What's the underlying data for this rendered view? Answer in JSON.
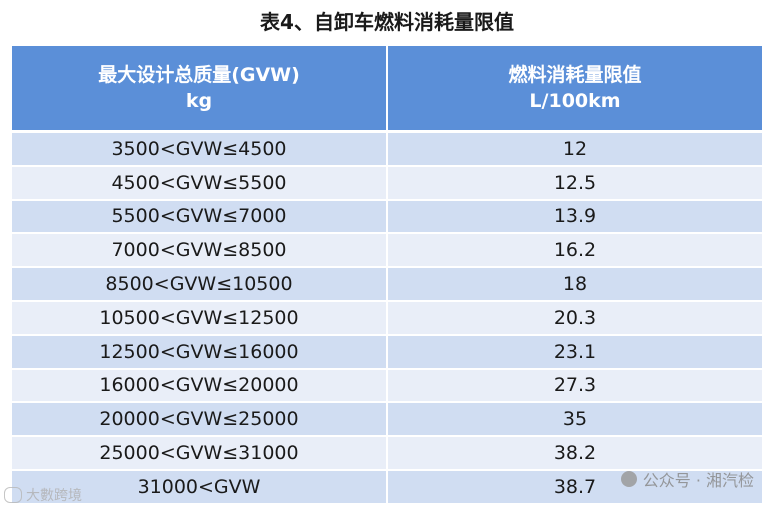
{
  "title": "表4、自卸车燃料消耗量限值",
  "table": {
    "headers": [
      {
        "line1": "最大设计总质量(GVW)",
        "line2": "kg"
      },
      {
        "line1": "燃料消耗量限值",
        "line2": "L/100km"
      }
    ],
    "rows": [
      {
        "range": "3500<GVW≤4500",
        "limit": "12"
      },
      {
        "range": "4500<GVW≤5500",
        "limit": "12.5"
      },
      {
        "range": "5500<GVW≤7000",
        "limit": "13.9"
      },
      {
        "range": "7000<GVW≤8500",
        "limit": "16.2"
      },
      {
        "range": "8500<GVW≤10500",
        "limit": "18"
      },
      {
        "range": "10500<GVW≤12500",
        "limit": "20.3"
      },
      {
        "range": "12500<GVW≤16000",
        "limit": "23.1"
      },
      {
        "range": "16000<GVW≤20000",
        "limit": "27.3"
      },
      {
        "range": "20000<GVW≤25000",
        "limit": "35"
      },
      {
        "range": "25000<GVW≤31000",
        "limit": "38.2"
      },
      {
        "range": "31000<GVW",
        "limit": "38.7"
      }
    ]
  },
  "watermarks": {
    "right": "公众号 · 湘汽检",
    "left": "大數跨境"
  },
  "colors": {
    "header_bg": "#5b8fd8",
    "row_odd_bg": "#d0ddf2",
    "row_even_bg": "#e9eef8"
  }
}
